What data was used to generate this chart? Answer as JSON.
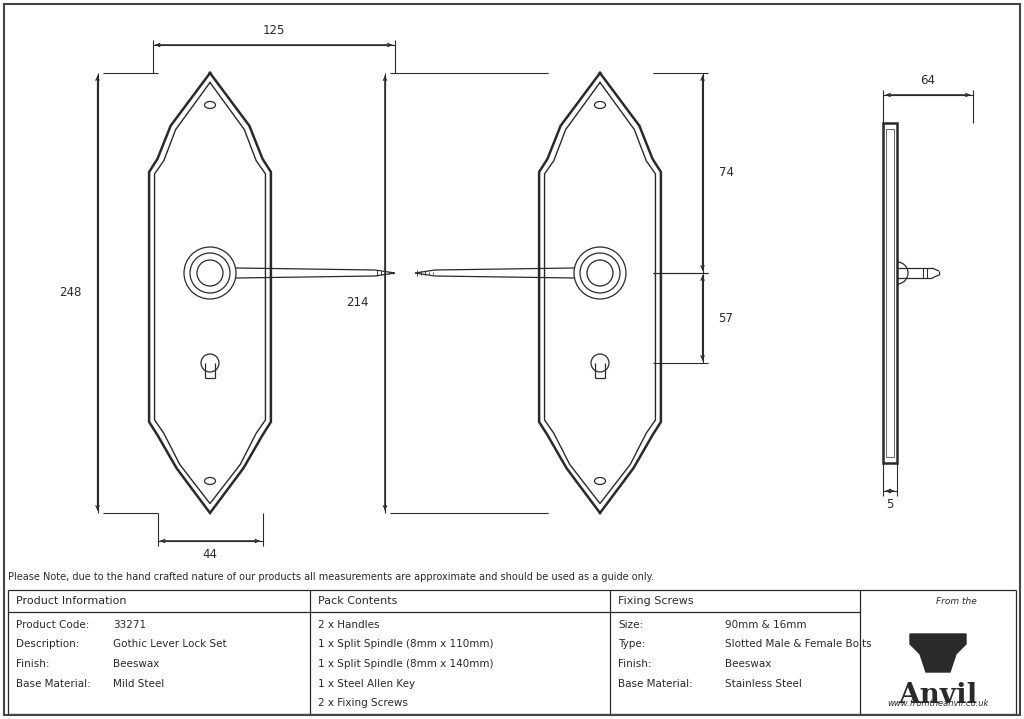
{
  "bg_color": "#ffffff",
  "line_color": "#2a2a2a",
  "dim_color": "#2a2a2a",
  "note_text": "Please Note, due to the hand crafted nature of our products all measurements are approximate and should be used as a guide only.",
  "product_info": {
    "header": "Product Information",
    "rows": [
      [
        "Product Code:",
        "33271"
      ],
      [
        "Description:",
        "Gothic Lever Lock Set"
      ],
      [
        "Finish:",
        "Beeswax"
      ],
      [
        "Base Material:",
        "Mild Steel"
      ]
    ]
  },
  "pack_contents": {
    "header": "Pack Contents",
    "rows": [
      "2 x Handles",
      "1 x Split Spindle (8mm x 110mm)",
      "1 x Split Spindle (8mm x 140mm)",
      "1 x Steel Allen Key",
      "2 x Fixing Screws"
    ]
  },
  "fixing_screws": {
    "header": "Fixing Screws",
    "rows": [
      [
        "Size:",
        "90mm & 16mm"
      ],
      [
        "Type:",
        "Slotted Male & Female Bolts"
      ],
      [
        "Finish:",
        "Beeswax"
      ],
      [
        "Base Material:",
        "Stainless Steel"
      ]
    ]
  },
  "dims": {
    "width_top": "125",
    "height_left": "248",
    "width_bottom": "44",
    "height_middle": "214",
    "dim_74": "74",
    "dim_57": "57",
    "dim_64": "64",
    "dim_5": "5"
  }
}
